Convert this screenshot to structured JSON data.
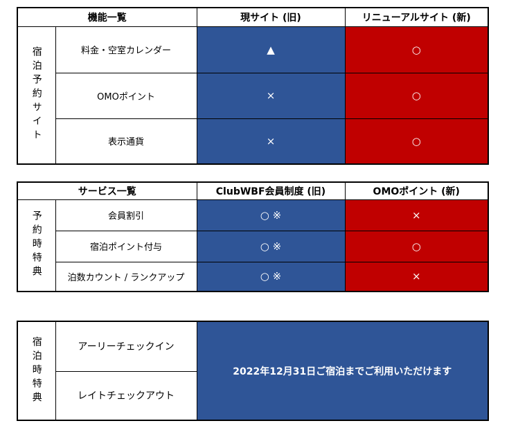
{
  "tables": [
    {
      "header": [
        "機能一覧",
        "現サイト (旧)",
        "リニューアルサイト (新)"
      ],
      "group": "宿泊予約サイト",
      "rows": [
        [
          "料金・空室カレンダー",
          "▲",
          "○"
        ],
        [
          "OMOポイント",
          "×",
          "○"
        ],
        [
          "表示通貨",
          "×",
          "○"
        ]
      ]
    },
    {
      "header": [
        "サービス一覧",
        "ClubWBF会員制度 (旧)",
        "OMOポイント (新)"
      ],
      "group": "予約時特典",
      "rows": [
        [
          "会員割引",
          "○ ※",
          "×"
        ],
        [
          "宿泊ポイント付与",
          "○ ※",
          "○"
        ],
        [
          "泊数カウント / ランクアップ",
          "○ ※",
          "×"
        ]
      ]
    },
    {
      "group": "宿泊時特典",
      "rows": [
        "アーリーチェックイン",
        "レイトチェックアウト"
      ],
      "note": "2022年12月31日ご宿泊までご利用いただけます"
    }
  ]
}
